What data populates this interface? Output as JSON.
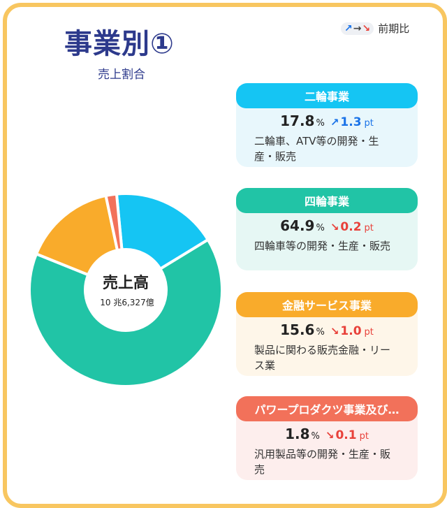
{
  "header": {
    "title": "事業別①",
    "subtitle": "売上割合",
    "legend": {
      "up": "↗",
      "flat": "→",
      "down": "↘",
      "label": "前期比"
    }
  },
  "colors": {
    "frame": "#f8c660",
    "title": "#2d3a8c",
    "up": "#1a73e8",
    "down": "#e8413a"
  },
  "chart_data": {
    "type": "pie",
    "center_label": "売上高",
    "center_value": "10 兆6,327億",
    "slices": [
      {
        "label": "二輪事業",
        "value": 17.8,
        "color": "#15c5f3"
      },
      {
        "label": "四輪事業",
        "value": 64.9,
        "color": "#21c4a6"
      },
      {
        "label": "金融サービス事業",
        "value": 15.6,
        "color": "#f9ab2b"
      },
      {
        "label": "パワープロダクツ事業及び…",
        "value": 1.8,
        "color": "#f2715a"
      }
    ]
  },
  "segments": [
    {
      "name": "二輪事業",
      "share": "17.8",
      "unit": "%",
      "direction": "up",
      "arrow": "↗",
      "change": "1.3",
      "change_unit": "pt",
      "description": "二輪車、ATV等の開発・生産・販売",
      "head_color": "#15c5f3",
      "body_color": "#e8f7fc"
    },
    {
      "name": "四輪事業",
      "share": "64.9",
      "unit": "%",
      "direction": "down",
      "arrow": "↘",
      "change": "0.2",
      "change_unit": "pt",
      "description": "四輪車等の開発・生産・販売",
      "head_color": "#21c4a6",
      "body_color": "#e6f7f4"
    },
    {
      "name": "金融サービス事業",
      "share": "15.6",
      "unit": "%",
      "direction": "down",
      "arrow": "↘",
      "change": "1.0",
      "change_unit": "pt",
      "description": "製品に関わる販売金融・リース業",
      "head_color": "#f9ab2b",
      "body_color": "#fef6e9"
    },
    {
      "name": "パワープロダクツ事業及び…",
      "share": "1.8",
      "unit": "%",
      "direction": "down",
      "arrow": "↘",
      "change": "0.1",
      "change_unit": "pt",
      "description": "汎用製品等の開発・生産・販売",
      "head_color": "#f2715a",
      "body_color": "#fdeeed"
    }
  ]
}
